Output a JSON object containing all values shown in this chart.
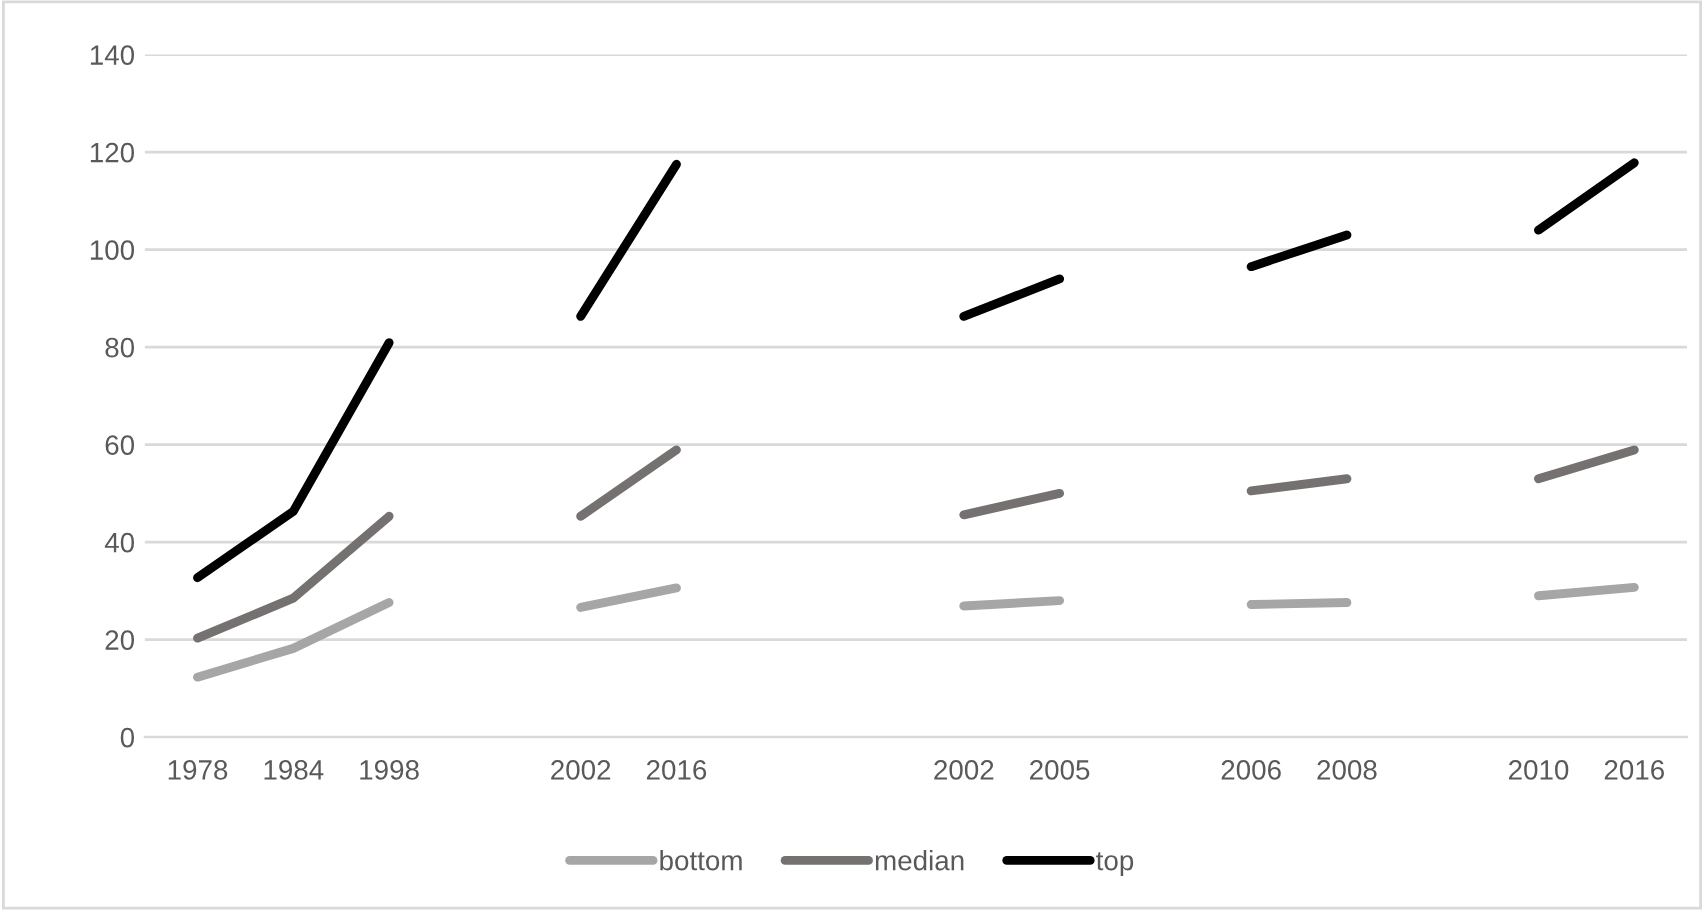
{
  "chart_data": {
    "type": "line",
    "categories": [
      "1978",
      "1984",
      "1998",
      null,
      "2002",
      "2016",
      null,
      null,
      "2002",
      "2005",
      null,
      "2006",
      "2008",
      null,
      "2010",
      "2016"
    ],
    "series": [
      {
        "name": "bottom",
        "color": "#a6a6a6",
        "values": [
          12.3,
          18.2,
          27.6,
          null,
          26.6,
          30.6,
          null,
          null,
          26.9,
          28,
          null,
          27.2,
          27.6,
          null,
          29,
          30.7
        ]
      },
      {
        "name": "median",
        "color": "#767171",
        "values": [
          20.3,
          28.5,
          45.3,
          null,
          45.3,
          58.9,
          null,
          null,
          45.6,
          50,
          null,
          50.5,
          53,
          null,
          53,
          58.9
        ]
      },
      {
        "name": "top",
        "color": "#000000",
        "values": [
          32.7,
          46.3,
          80.9,
          null,
          86.3,
          117.5,
          null,
          null,
          86.3,
          94,
          null,
          96.5,
          103,
          null,
          104,
          117.8
        ]
      }
    ],
    "ylim": [
      0,
      140
    ],
    "yticks": [
      0,
      20,
      40,
      60,
      80,
      100,
      120,
      140
    ],
    "grid": "y",
    "legend": "bottom",
    "marker": "none",
    "line_style": "solid"
  }
}
